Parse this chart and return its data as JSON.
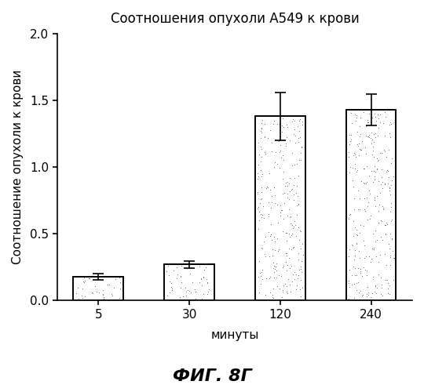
{
  "title": "Соотношения опухоли А549 к крови",
  "xlabel": "минуты",
  "ylabel": "Соотношение опухоли к крови",
  "caption": "ФИГ. 8Г",
  "categories": [
    "5",
    "30",
    "120",
    "240"
  ],
  "values": [
    0.18,
    0.27,
    1.38,
    1.43
  ],
  "errors": [
    0.025,
    0.025,
    0.18,
    0.12
  ],
  "ylim": [
    0,
    2.0
  ],
  "yticks": [
    0.0,
    0.5,
    1.0,
    1.5,
    2.0
  ],
  "bar_color": "#ffffff",
  "bar_edgecolor": "#000000",
  "bar_width": 0.55,
  "background_color": "#ffffff",
  "title_fontsize": 12,
  "label_fontsize": 11,
  "tick_fontsize": 11,
  "caption_fontsize": 16,
  "stipple_density": 400,
  "stipple_size": 1.5,
  "stipple_color": "#555555"
}
